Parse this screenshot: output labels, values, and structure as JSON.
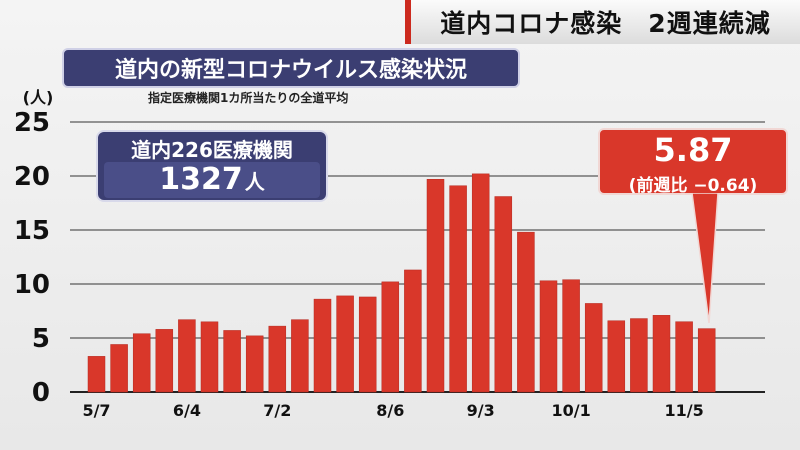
{
  "headline": "道内コロナ感染　2週連続減",
  "chart_title": "道内の新型コロナウイルス感染状況",
  "subtitle": "指定医療機関1カ所当たりの全道平均",
  "info_box": {
    "label": "道内226医療機関",
    "value": "1327",
    "unit": "人"
  },
  "callout": {
    "value": "5.87",
    "change": "(前週比 −0.64)"
  },
  "colors": {
    "bar": "#d9372a",
    "title_bg": "#3b3e72",
    "callout_bg": "#d9372a",
    "accent": "#cc2a1e"
  },
  "chart_data": {
    "type": "bar",
    "title": "道内の新型コロナウイルス感染状況",
    "ylabel": "(人)",
    "ylim": [
      0,
      25
    ],
    "yticks": [
      0,
      5,
      10,
      15,
      20,
      25
    ],
    "xtick_labels": [
      {
        "index": 0,
        "label": "5/7"
      },
      {
        "index": 4,
        "label": "6/4"
      },
      {
        "index": 8,
        "label": "7/2"
      },
      {
        "index": 13,
        "label": "8/6"
      },
      {
        "index": 17,
        "label": "9/3"
      },
      {
        "index": 21,
        "label": "10/1"
      },
      {
        "index": 26,
        "label": "11/5"
      }
    ],
    "values": [
      3.3,
      4.4,
      5.4,
      5.8,
      6.7,
      6.5,
      5.7,
      5.2,
      6.1,
      6.7,
      8.6,
      8.9,
      8.8,
      10.2,
      11.3,
      19.7,
      19.1,
      20.2,
      18.1,
      14.8,
      10.3,
      10.4,
      8.2,
      6.6,
      6.8,
      7.1,
      6.51,
      5.87
    ],
    "grid": true,
    "highlight_index": 27
  }
}
